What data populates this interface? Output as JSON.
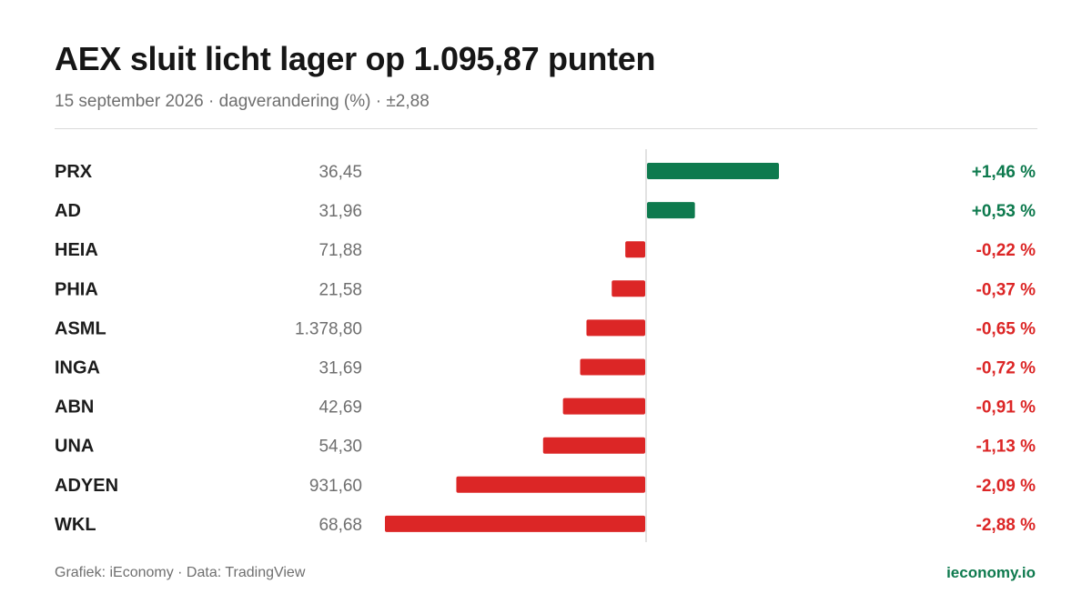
{
  "header": {
    "title": "AEX sluit licht lager op 1.095,87 punten",
    "subtitle": "15 september 2026 · dagverandering (%) · ±2,88"
  },
  "footer": {
    "source": "Grafiek: iEconomy · Data: TradingView",
    "brand": "ieconomy.io"
  },
  "colors": {
    "positive": "#0e7a4e",
    "negative": "#dc2626",
    "ticker": "#1c1c1c",
    "price": "#6f6f6f",
    "zero_line": "#d9d9d9"
  },
  "chart_data": {
    "type": "bar",
    "orientation": "horizontal",
    "xlim": [
      -2.88,
      2.88
    ],
    "grid": false,
    "categories": [
      "PRX",
      "AD",
      "HEIA",
      "PHIA",
      "ASML",
      "INGA",
      "ABN",
      "UNA",
      "ADYEN",
      "WKL"
    ],
    "prices": [
      "36,45",
      "31,96",
      "71,88",
      "21,58",
      "1.378,80",
      "31,69",
      "42,69",
      "54,30",
      "931,60",
      "68,68"
    ],
    "values": [
      1.46,
      0.53,
      -0.22,
      -0.37,
      -0.65,
      -0.72,
      -0.91,
      -1.13,
      -2.09,
      -2.88
    ],
    "value_labels": [
      "+1,46 %",
      "+0,53 %",
      "-0,22 %",
      "-0,37 %",
      "-0,65 %",
      "-0,72 %",
      "-0,91 %",
      "-1,13 %",
      "-2,09 %",
      "-2,88 %"
    ]
  }
}
